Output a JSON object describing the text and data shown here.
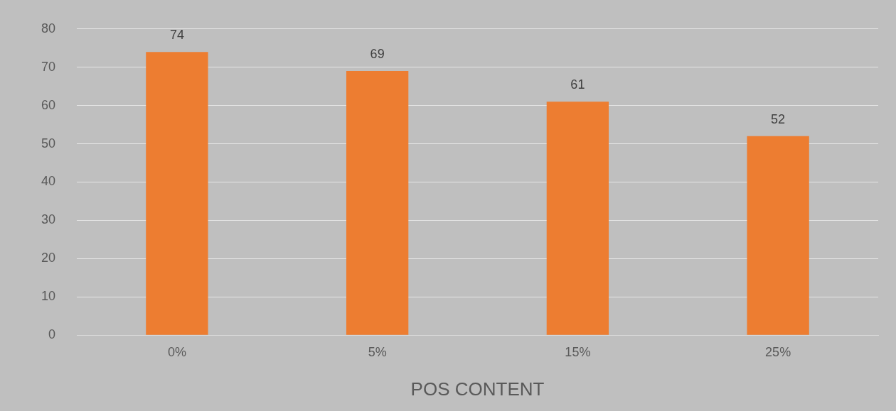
{
  "chart_data": {
    "type": "bar",
    "xlabel": "POS CONTENT",
    "categories": [
      "0%",
      "5%",
      "15%",
      "25%"
    ],
    "values": [
      74,
      69,
      61,
      52
    ],
    "color": "#ed7d31",
    "ylim": [
      0,
      80
    ],
    "yticks": [
      0,
      10,
      20,
      30,
      40,
      50,
      60,
      70,
      80
    ],
    "grid": "y",
    "data_labels": true
  }
}
